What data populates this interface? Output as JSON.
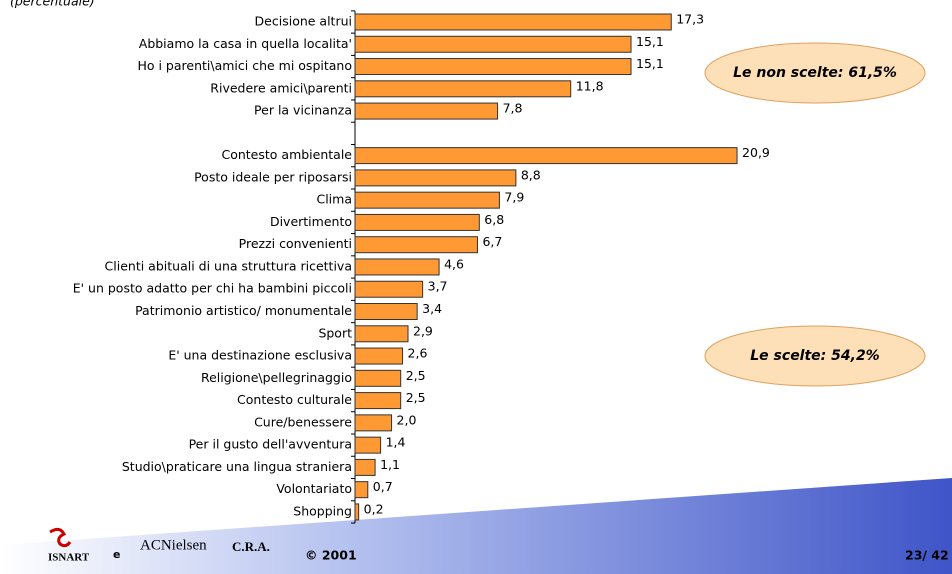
{
  "chart_data": {
    "type": "bar",
    "orientation": "horizontal",
    "subtitle": "(percentuale)",
    "categories": [
      "Decisione altrui",
      "Abbiamo la casa in quella localita'",
      "Ho i parenti\\amici che mi ospitano",
      "Rivedere amici\\parenti",
      "Per la vicinanza",
      null,
      "Contesto ambientale",
      "Posto ideale per riposarsi",
      "Clima",
      "Divertimento",
      "Prezzi convenienti",
      "Clienti abituali di una struttura ricettiva",
      "E' un posto adatto per chi ha bambini piccoli",
      "Patrimonio artistico/ monumentale",
      "Sport",
      "E' una destinazione esclusiva",
      "Religione\\pellegrinaggio",
      "Contesto culturale",
      "Cure/benessere",
      "Per il gusto dell'avventura",
      "Studio\\praticare una lingua straniera",
      "Volontariato",
      "Shopping"
    ],
    "values": [
      17.3,
      15.1,
      15.1,
      11.8,
      7.8,
      null,
      20.9,
      8.8,
      7.9,
      6.8,
      6.7,
      4.6,
      3.7,
      3.4,
      2.9,
      2.6,
      2.5,
      2.5,
      2.0,
      1.4,
      1.1,
      0.7,
      0.2
    ],
    "value_labels": [
      "17,3",
      "15,1",
      "15,1",
      "11,8",
      "7,8",
      null,
      "20,9",
      "8,8",
      "7,9",
      "6,8",
      "6,7",
      "4,6",
      "3,7",
      "3,4",
      "2,9",
      "2,6",
      "2,5",
      "2,5",
      "2,0",
      "1,4",
      "1,1",
      "0,7",
      "0,2"
    ],
    "color": "#ff9933",
    "xlim": [
      0,
      25
    ],
    "annotations": [
      "Le non scelte: 61,5%",
      "Le scelte: 54,2%"
    ]
  },
  "footer": {
    "logo": "ISNART",
    "conjunction": "e",
    "partner": "ACNielsen",
    "partner_suffix": "C.R.A.",
    "copyright": "© 2001",
    "page": "23/ 42"
  }
}
